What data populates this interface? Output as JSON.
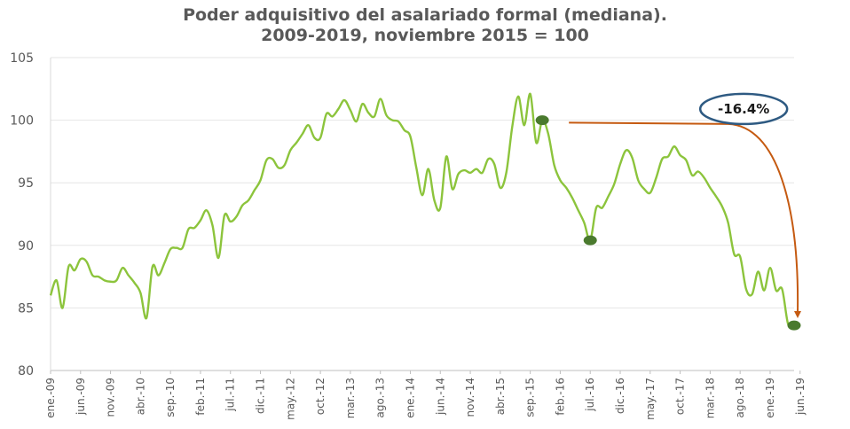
{
  "chart_data": {
    "type": "line",
    "title": "Poder adquisitivo del asalariado formal (mediana).",
    "subtitle": "2009-2019, noviembre 2015 = 100",
    "ylim": [
      80,
      105
    ],
    "yticks": [
      80,
      85,
      90,
      95,
      100,
      105
    ],
    "x_tick_labels": [
      "ene.-09",
      "jun.-09",
      "nov.-09",
      "abr.-10",
      "sep.-10",
      "feb.-11",
      "jul.-11",
      "dic.-11",
      "may.-12",
      "oct.-12",
      "mar.-13",
      "ago.-13",
      "ene.-14",
      "jun.-14",
      "nov.-14",
      "abr.-15",
      "sep.-15",
      "feb.-16",
      "jul.-16",
      "dic.-16",
      "may.-17",
      "oct.-17",
      "mar.-18",
      "ago.-18",
      "ene.-19",
      "jun.-19"
    ],
    "grid": "horizontal",
    "line_color": "#8cc43c",
    "series": [
      {
        "values": [
          86.0,
          87.2,
          85.0,
          88.3,
          88.0,
          88.9,
          88.7,
          87.6,
          87.5,
          87.2,
          87.1,
          87.2,
          88.2,
          87.6,
          87.0,
          86.2,
          84.2,
          88.3,
          87.6,
          88.6,
          89.7,
          89.8,
          89.8,
          91.3,
          91.4,
          92.0,
          92.8,
          91.6,
          89.0,
          92.4,
          91.9,
          92.3,
          93.2,
          93.6,
          94.4,
          95.2,
          96.8,
          96.9,
          96.2,
          96.4,
          97.6,
          98.2,
          98.9,
          99.6,
          98.6,
          98.6,
          100.5,
          100.3,
          100.9,
          101.6,
          100.8,
          99.9,
          101.3,
          100.6,
          100.3,
          101.7,
          100.4,
          100.0,
          99.9,
          99.2,
          98.7,
          96.2,
          94.0,
          96.1,
          93.6,
          93.0,
          97.1,
          94.5,
          95.7,
          96.0,
          95.8,
          96.1,
          95.8,
          96.9,
          96.5,
          94.6,
          95.8,
          99.5,
          101.9,
          99.6,
          102.1,
          98.2,
          100.0,
          98.9,
          96.4,
          95.2,
          94.6,
          93.8,
          92.8,
          91.8,
          90.4,
          93.0,
          93.0,
          93.9,
          94.9,
          96.5,
          97.6,
          97.0,
          95.2,
          94.5,
          94.2,
          95.4,
          96.9,
          97.1,
          97.9,
          97.2,
          96.8,
          95.6,
          95.9,
          95.4,
          94.6,
          93.9,
          93.1,
          91.8,
          89.3,
          89.1,
          86.5,
          86.1,
          87.9,
          86.4,
          88.2,
          86.4,
          86.5,
          83.7,
          83.6
        ]
      }
    ],
    "markers": [
      {
        "index": 82,
        "value": 100.0,
        "color": "#4a7a2e"
      },
      {
        "index": 90,
        "value": 90.4,
        "color": "#4a7a2e"
      },
      {
        "index": 124,
        "value": 83.6,
        "color": "#4a7a2e"
      }
    ],
    "annotation": {
      "text": "-16.4%",
      "arrow_color": "#c55a11",
      "ellipse_color": "#2e5a82"
    }
  }
}
